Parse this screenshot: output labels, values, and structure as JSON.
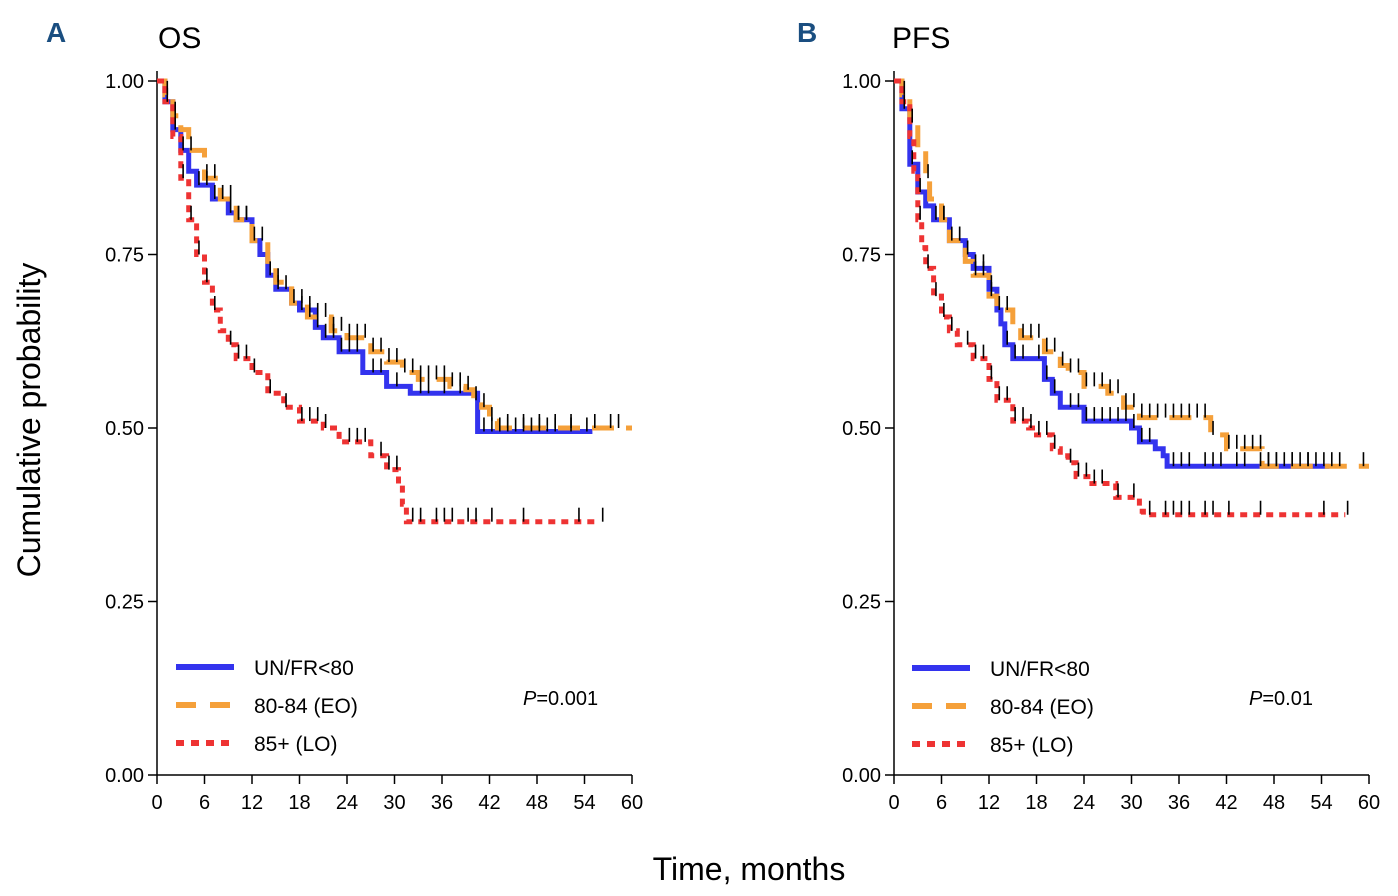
{
  "figure": {
    "ylabel": "Cumulative probability",
    "xlabel": "Time, months"
  },
  "chart_data": [
    {
      "type": "line",
      "panel_letter": "A",
      "title": "OS",
      "xlabel": "Time, months",
      "ylabel": "Cumulative probability",
      "xlim": [
        0,
        60
      ],
      "ylim": [
        0,
        1
      ],
      "xticks": [
        "0",
        "6",
        "12",
        "18",
        "24",
        "30",
        "36",
        "42",
        "48",
        "54",
        "60"
      ],
      "yticks": [
        "0.00",
        "0.25",
        "0.50",
        "0.75",
        "1.00"
      ],
      "grid": false,
      "legend_position": "bottom-left",
      "annotation": {
        "label": "P",
        "value": "=0.001"
      },
      "series": [
        {
          "name": "UN/FR<80",
          "color": "#3333ee",
          "style": "solid",
          "x": [
            0,
            1,
            2,
            3,
            4,
            5,
            7,
            9,
            10,
            12,
            13,
            14,
            15,
            17,
            18,
            20,
            21,
            23,
            26,
            29,
            32,
            40,
            40.5,
            55
          ],
          "y": [
            1.0,
            0.97,
            0.93,
            0.9,
            0.87,
            0.85,
            0.83,
            0.81,
            0.8,
            0.77,
            0.75,
            0.72,
            0.7,
            0.68,
            0.67,
            0.645,
            0.63,
            0.61,
            0.58,
            0.56,
            0.55,
            0.55,
            0.495,
            0.495
          ],
          "censor_x": [
            1,
            2,
            3,
            5,
            6,
            7,
            8,
            9,
            10,
            11,
            12,
            14,
            15,
            16,
            18,
            19,
            20,
            21,
            22,
            23,
            24,
            25,
            27,
            28,
            30,
            33,
            34,
            36,
            38,
            41,
            42,
            43,
            44,
            45,
            46,
            47,
            48,
            49,
            50,
            52,
            54
          ]
        },
        {
          "name": "80-84 (EO)",
          "color": "#f5a03a",
          "style": "dashed",
          "x": [
            0,
            1,
            2,
            3,
            4,
            6,
            8,
            10,
            12,
            14,
            15,
            17,
            19,
            22,
            24,
            27,
            29,
            31,
            33,
            37,
            39,
            40,
            41,
            42,
            43,
            60
          ],
          "y": [
            1.0,
            0.98,
            0.95,
            0.93,
            0.9,
            0.86,
            0.83,
            0.8,
            0.77,
            0.74,
            0.71,
            0.68,
            0.66,
            0.64,
            0.63,
            0.61,
            0.595,
            0.58,
            0.57,
            0.56,
            0.555,
            0.54,
            0.53,
            0.51,
            0.5,
            0.5
          ],
          "censor_x": [
            1,
            2,
            4,
            6,
            7,
            8,
            9,
            10,
            11,
            13,
            15,
            17,
            18,
            19,
            20,
            21,
            22,
            23,
            24,
            25,
            26,
            27,
            28,
            29,
            30,
            31,
            32,
            33,
            34,
            35,
            36,
            37,
            38,
            39,
            40,
            41,
            42,
            44,
            46,
            48,
            50,
            52,
            55,
            57,
            58
          ]
        },
        {
          "name": "85+ (LO)",
          "color": "#ee3333",
          "style": "dotted",
          "x": [
            0,
            1,
            2,
            3,
            4,
            5,
            6,
            7,
            8,
            9,
            10,
            12,
            14,
            16,
            18,
            21,
            23,
            25,
            27,
            29,
            30,
            30.5,
            31,
            31.5,
            56
          ],
          "y": [
            1.0,
            0.97,
            0.92,
            0.86,
            0.8,
            0.75,
            0.71,
            0.67,
            0.64,
            0.62,
            0.6,
            0.58,
            0.55,
            0.53,
            0.51,
            0.5,
            0.48,
            0.48,
            0.46,
            0.44,
            0.44,
            0.42,
            0.39,
            0.365,
            0.365
          ],
          "censor_x": [
            3,
            4,
            5,
            6,
            7,
            9,
            10,
            11,
            12,
            14,
            16,
            18,
            19,
            20,
            21,
            24,
            25,
            26,
            28,
            29,
            30,
            32,
            33,
            35,
            36,
            37,
            39,
            40,
            42,
            46,
            53,
            56
          ]
        }
      ]
    },
    {
      "type": "line",
      "panel_letter": "B",
      "title": "PFS",
      "xlabel": "Time, months",
      "ylabel": "Cumulative probability",
      "xlim": [
        0,
        60
      ],
      "ylim": [
        0,
        1
      ],
      "xticks": [
        "0",
        "6",
        "12",
        "18",
        "24",
        "30",
        "36",
        "42",
        "48",
        "54",
        "60"
      ],
      "yticks": [
        "0.00",
        "0.25",
        "0.50",
        "0.75",
        "1.00"
      ],
      "grid": false,
      "legend_position": "bottom-left",
      "annotation": {
        "label": "P",
        "value": "=0.01"
      },
      "series": [
        {
          "name": "UN/FR<80",
          "color": "#3333ee",
          "style": "solid",
          "x": [
            0,
            1,
            2,
            3,
            4,
            5,
            7,
            9,
            10,
            12,
            13,
            13.5,
            14,
            15,
            18,
            19,
            20,
            21,
            24,
            27,
            30,
            31,
            32,
            33,
            34,
            34.5,
            55
          ],
          "y": [
            1.0,
            0.96,
            0.88,
            0.84,
            0.82,
            0.8,
            0.77,
            0.75,
            0.73,
            0.7,
            0.67,
            0.65,
            0.62,
            0.6,
            0.6,
            0.57,
            0.55,
            0.53,
            0.51,
            0.51,
            0.5,
            0.48,
            0.48,
            0.47,
            0.46,
            0.445,
            0.445
          ],
          "censor_x": [
            1,
            2,
            3,
            5,
            6,
            7,
            8,
            9,
            10,
            11,
            12,
            14,
            15,
            16,
            18,
            19,
            20,
            22,
            23,
            24,
            25,
            26,
            27,
            28,
            29,
            30,
            31,
            32,
            35,
            36,
            37,
            39,
            40,
            41,
            43,
            44,
            46,
            47,
            48,
            50,
            52,
            54
          ]
        },
        {
          "name": "80-84 (EO)",
          "color": "#f5a03a",
          "style": "dashed",
          "x": [
            0,
            1,
            2,
            3,
            4,
            4.5,
            6,
            7,
            9,
            10,
            12,
            13,
            15,
            16,
            19,
            21,
            22,
            24,
            27,
            29,
            31,
            39,
            40,
            41,
            42,
            43,
            46,
            46.5,
            60
          ],
          "y": [
            1.0,
            0.98,
            0.94,
            0.9,
            0.86,
            0.83,
            0.8,
            0.77,
            0.74,
            0.72,
            0.69,
            0.67,
            0.64,
            0.63,
            0.61,
            0.59,
            0.58,
            0.56,
            0.55,
            0.53,
            0.515,
            0.515,
            0.49,
            0.49,
            0.47,
            0.47,
            0.47,
            0.445,
            0.445
          ],
          "censor_x": [
            1,
            2,
            4,
            6,
            8,
            10,
            11,
            12,
            13,
            14,
            16,
            17,
            18,
            19,
            20,
            21,
            22,
            23,
            24,
            25,
            26,
            27,
            28,
            29,
            30,
            31,
            32,
            33,
            34,
            35,
            36,
            37,
            38,
            39,
            40,
            42,
            43,
            44,
            45,
            46,
            47,
            48,
            49,
            50,
            51,
            52,
            53,
            55,
            56,
            59
          ]
        },
        {
          "name": "85+ (LO)",
          "color": "#ee3333",
          "style": "dotted",
          "x": [
            0,
            1,
            2,
            2.5,
            3,
            3.5,
            4,
            5,
            6,
            7,
            8,
            10,
            12,
            13,
            15,
            17,
            18,
            20,
            21,
            22,
            23,
            25,
            27,
            28,
            30,
            31,
            31.5,
            57
          ],
          "y": [
            1.0,
            0.97,
            0.92,
            0.87,
            0.8,
            0.76,
            0.73,
            0.69,
            0.66,
            0.64,
            0.62,
            0.6,
            0.57,
            0.54,
            0.51,
            0.5,
            0.49,
            0.47,
            0.46,
            0.45,
            0.43,
            0.42,
            0.42,
            0.4,
            0.4,
            0.38,
            0.375,
            0.375
          ],
          "censor_x": [
            3,
            4,
            5,
            6,
            7,
            9,
            10,
            11,
            12,
            13,
            14,
            15,
            16,
            17,
            18,
            19,
            20,
            22,
            23,
            24,
            25,
            26,
            28,
            30,
            32,
            34,
            35,
            36,
            37,
            39,
            40,
            42,
            46,
            54,
            57
          ]
        }
      ]
    }
  ]
}
